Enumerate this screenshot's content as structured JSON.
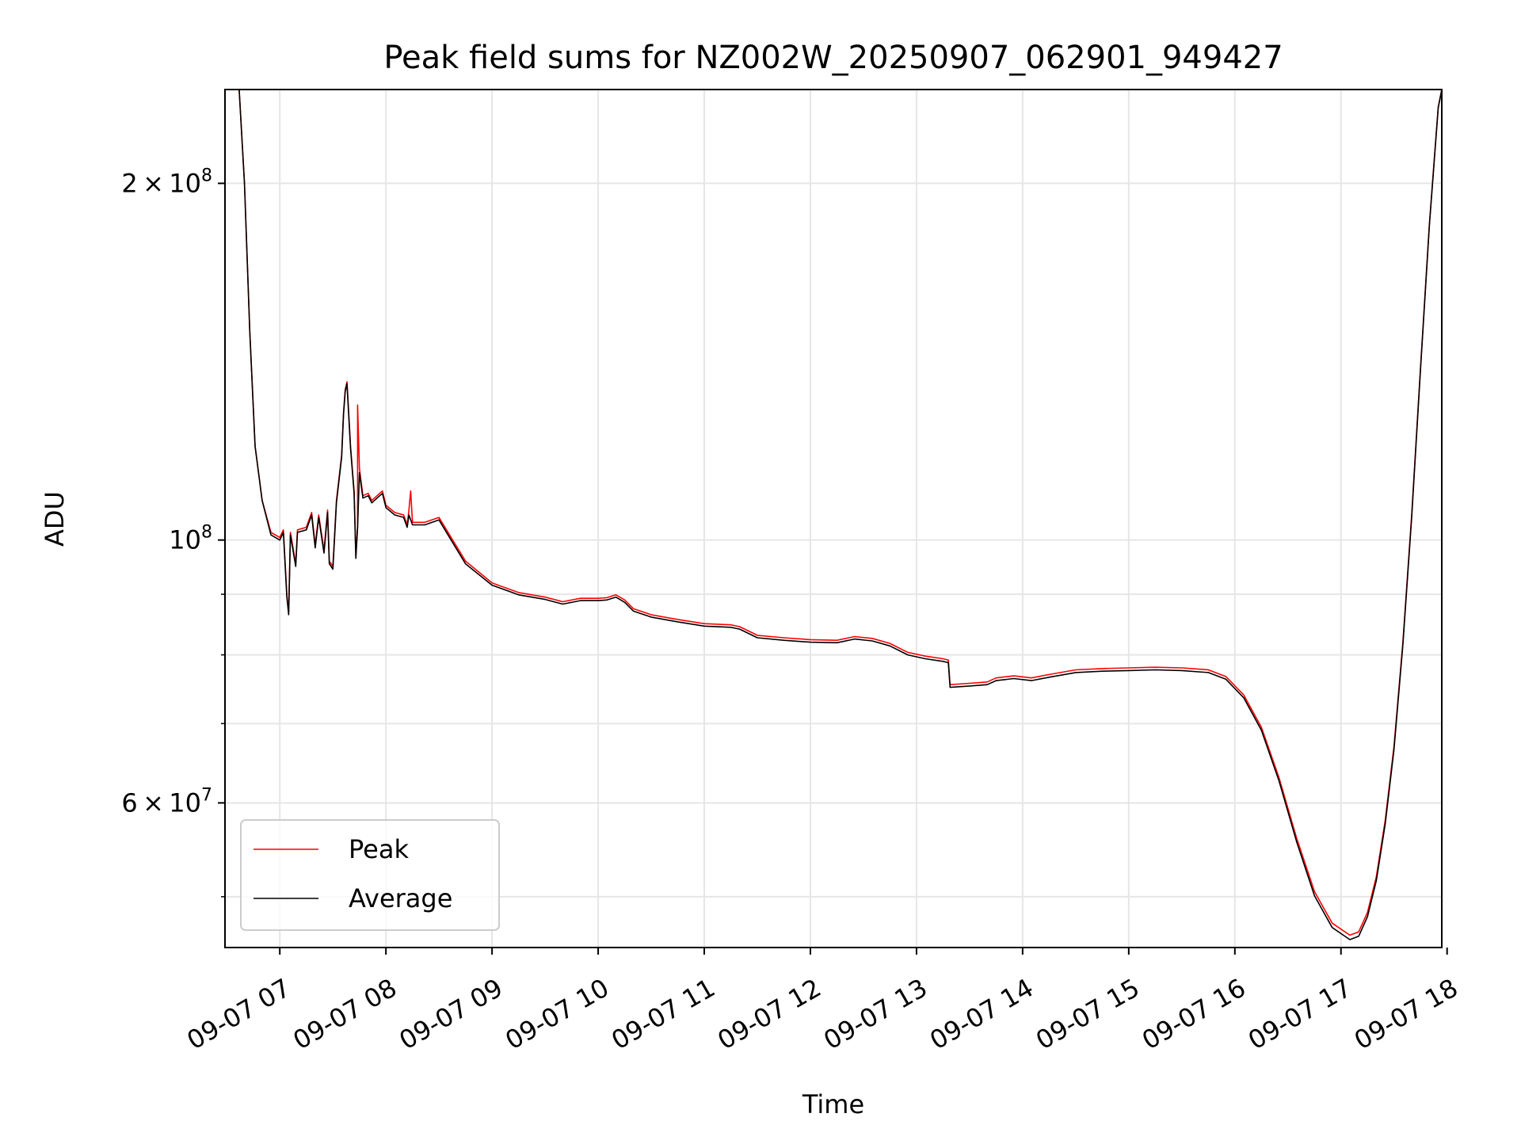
{
  "chart_data": {
    "type": "line",
    "title": "Peak field sums for NZ002W_20250907_062901_949427",
    "xlabel": "Time",
    "ylabel": "ADU",
    "y_scale": "log",
    "xlim": [
      "2025-09-07 06:29",
      "2025-09-07 17:57"
    ],
    "ylim": [
      45300000,
      240000000
    ],
    "grid": true,
    "legend_position": "lower-left",
    "x_ticks": [
      {
        "value": "2025-09-07 07:00",
        "label": "09-07 07"
      },
      {
        "value": "2025-09-07 08:00",
        "label": "09-07 08"
      },
      {
        "value": "2025-09-07 09:00",
        "label": "09-07 09"
      },
      {
        "value": "2025-09-07 10:00",
        "label": "09-07 10"
      },
      {
        "value": "2025-09-07 11:00",
        "label": "09-07 11"
      },
      {
        "value": "2025-09-07 12:00",
        "label": "09-07 12"
      },
      {
        "value": "2025-09-07 13:00",
        "label": "09-07 13"
      },
      {
        "value": "2025-09-07 14:00",
        "label": "09-07 14"
      },
      {
        "value": "2025-09-07 15:00",
        "label": "09-07 15"
      },
      {
        "value": "2025-09-07 16:00",
        "label": "09-07 16"
      },
      {
        "value": "2025-09-07 17:00",
        "label": "09-07 17"
      },
      {
        "value": "2025-09-07 18:00",
        "label": "09-07 18"
      }
    ],
    "y_major_ticks": [
      {
        "value": 200000000,
        "base": "2",
        "exp": "8"
      },
      {
        "value": 100000000,
        "base": "10",
        "exp": "8",
        "pow_only": true
      },
      {
        "value": 60000000,
        "base": "6",
        "exp": "7"
      }
    ],
    "y_minor_ticks": [
      50000000,
      70000000,
      80000000,
      90000000
    ],
    "series": [
      {
        "name": "Peak",
        "color": "#ff0000",
        "points": [
          [
            "2025-09-07 06:37",
            240000000
          ],
          [
            "2025-09-07 06:40",
            200000000
          ],
          [
            "2025-09-07 06:43",
            150000000
          ],
          [
            "2025-09-07 06:46",
            120000000
          ],
          [
            "2025-09-07 06:50",
            108000000
          ],
          [
            "2025-09-07 06:55",
            101500000
          ],
          [
            "2025-09-07 07:00",
            100500000
          ],
          [
            "2025-09-07 07:02",
            102000000
          ],
          [
            "2025-09-07 07:04",
            90000000
          ],
          [
            "2025-09-07 07:05",
            87000000
          ],
          [
            "2025-09-07 07:06",
            101500000
          ],
          [
            "2025-09-07 07:09",
            95500000
          ],
          [
            "2025-09-07 07:10",
            102000000
          ],
          [
            "2025-09-07 07:15",
            102500000
          ],
          [
            "2025-09-07 07:18",
            105500000
          ],
          [
            "2025-09-07 07:20",
            99000000
          ],
          [
            "2025-09-07 07:22",
            105000000
          ],
          [
            "2025-09-07 07:25",
            98000000
          ],
          [
            "2025-09-07 07:27",
            106000000
          ],
          [
            "2025-09-07 07:28",
            96000000
          ],
          [
            "2025-09-07 07:30",
            95000000
          ],
          [
            "2025-09-07 07:32",
            108000000
          ],
          [
            "2025-09-07 07:35",
            118000000
          ],
          [
            "2025-09-07 07:36",
            128000000
          ],
          [
            "2025-09-07 07:37",
            134000000
          ],
          [
            "2025-09-07 07:38",
            136000000
          ],
          [
            "2025-09-07 07:40",
            120000000
          ],
          [
            "2025-09-07 07:42",
            110000000
          ],
          [
            "2025-09-07 07:43",
            97000000
          ],
          [
            "2025-09-07 07:44",
            103000000
          ],
          [
            "2025-09-07 07:44",
            130000000
          ],
          [
            "2025-09-07 07:45",
            115000000
          ],
          [
            "2025-09-07 07:47",
            109000000
          ],
          [
            "2025-09-07 07:50",
            109500000
          ],
          [
            "2025-09-07 07:52",
            108000000
          ],
          [
            "2025-09-07 07:55",
            109000000
          ],
          [
            "2025-09-07 07:58",
            110000000
          ],
          [
            "2025-09-07 08:00",
            107000000
          ],
          [
            "2025-09-07 08:05",
            105500000
          ],
          [
            "2025-09-07 08:10",
            105000000
          ],
          [
            "2025-09-07 08:12",
            103000000
          ],
          [
            "2025-09-07 08:13",
            106000000
          ],
          [
            "2025-09-07 08:14",
            110000000
          ],
          [
            "2025-09-07 08:15",
            103500000
          ],
          [
            "2025-09-07 08:22",
            103500000
          ],
          [
            "2025-09-07 08:30",
            104500000
          ],
          [
            "2025-09-07 08:36",
            101000000
          ],
          [
            "2025-09-07 08:45",
            96000000
          ],
          [
            "2025-09-07 09:00",
            92000000
          ],
          [
            "2025-09-07 09:15",
            90300000
          ],
          [
            "2025-09-07 09:30",
            89500000
          ],
          [
            "2025-09-07 09:40",
            88700000
          ],
          [
            "2025-09-07 09:50",
            89300000
          ],
          [
            "2025-09-07 10:00",
            89300000
          ],
          [
            "2025-09-07 10:05",
            89400000
          ],
          [
            "2025-09-07 10:10",
            89900000
          ],
          [
            "2025-09-07 10:15",
            89000000
          ],
          [
            "2025-09-07 10:20",
            87500000
          ],
          [
            "2025-09-07 10:30",
            86500000
          ],
          [
            "2025-09-07 10:45",
            85700000
          ],
          [
            "2025-09-07 11:00",
            85000000
          ],
          [
            "2025-09-07 11:15",
            84800000
          ],
          [
            "2025-09-07 11:20",
            84500000
          ],
          [
            "2025-09-07 11:30",
            83100000
          ],
          [
            "2025-09-07 11:45",
            82700000
          ],
          [
            "2025-09-07 12:00",
            82400000
          ],
          [
            "2025-09-07 12:15",
            82300000
          ],
          [
            "2025-09-07 12:25",
            82900000
          ],
          [
            "2025-09-07 12:35",
            82600000
          ],
          [
            "2025-09-07 12:45",
            81800000
          ],
          [
            "2025-09-07 12:55",
            80400000
          ],
          [
            "2025-09-07 13:05",
            79800000
          ],
          [
            "2025-09-07 13:15",
            79400000
          ],
          [
            "2025-09-07 13:18",
            79200000
          ],
          [
            "2025-09-07 13:19",
            75500000
          ],
          [
            "2025-09-07 13:30",
            75700000
          ],
          [
            "2025-09-07 13:40",
            75900000
          ],
          [
            "2025-09-07 13:45",
            76500000
          ],
          [
            "2025-09-07 13:55",
            76800000
          ],
          [
            "2025-09-07 14:05",
            76500000
          ],
          [
            "2025-09-07 14:15",
            77000000
          ],
          [
            "2025-09-07 14:30",
            77700000
          ],
          [
            "2025-09-07 14:45",
            77900000
          ],
          [
            "2025-09-07 15:00",
            78000000
          ],
          [
            "2025-09-07 15:15",
            78100000
          ],
          [
            "2025-09-07 15:30",
            78000000
          ],
          [
            "2025-09-07 15:45",
            77700000
          ],
          [
            "2025-09-07 15:55",
            76700000
          ],
          [
            "2025-09-07 16:05",
            74000000
          ],
          [
            "2025-09-07 16:15",
            69500000
          ],
          [
            "2025-09-07 16:25",
            63000000
          ],
          [
            "2025-09-07 16:35",
            56000000
          ],
          [
            "2025-09-07 16:45",
            50500000
          ],
          [
            "2025-09-07 16:55",
            47500000
          ],
          [
            "2025-09-07 17:05",
            46400000
          ],
          [
            "2025-09-07 17:10",
            46700000
          ],
          [
            "2025-09-07 17:15",
            48500000
          ],
          [
            "2025-09-07 17:20",
            52000000
          ],
          [
            "2025-09-07 17:25",
            58000000
          ],
          [
            "2025-09-07 17:30",
            67000000
          ],
          [
            "2025-09-07 17:35",
            82000000
          ],
          [
            "2025-09-07 17:40",
            105000000
          ],
          [
            "2025-09-07 17:45",
            140000000
          ],
          [
            "2025-09-07 17:50",
            185000000
          ],
          [
            "2025-09-07 17:55",
            232000000
          ],
          [
            "2025-09-07 17:57",
            240000000
          ]
        ]
      },
      {
        "name": "Average",
        "color": "#000000",
        "points": [
          [
            "2025-09-07 06:37",
            240000000
          ],
          [
            "2025-09-07 06:40",
            200000000
          ],
          [
            "2025-09-07 06:43",
            150000000
          ],
          [
            "2025-09-07 06:46",
            120000000
          ],
          [
            "2025-09-07 06:50",
            108000000
          ],
          [
            "2025-09-07 06:55",
            101000000
          ],
          [
            "2025-09-07 07:00",
            100000000
          ],
          [
            "2025-09-07 07:02",
            101500000
          ],
          [
            "2025-09-07 07:04",
            89500000
          ],
          [
            "2025-09-07 07:05",
            86500000
          ],
          [
            "2025-09-07 07:06",
            101000000
          ],
          [
            "2025-09-07 07:09",
            95000000
          ],
          [
            "2025-09-07 07:10",
            101500000
          ],
          [
            "2025-09-07 07:15",
            102000000
          ],
          [
            "2025-09-07 07:18",
            105000000
          ],
          [
            "2025-09-07 07:20",
            98500000
          ],
          [
            "2025-09-07 07:22",
            104500000
          ],
          [
            "2025-09-07 07:25",
            97500000
          ],
          [
            "2025-09-07 07:27",
            105500000
          ],
          [
            "2025-09-07 07:28",
            95500000
          ],
          [
            "2025-09-07 07:30",
            94500000
          ],
          [
            "2025-09-07 07:32",
            107500000
          ],
          [
            "2025-09-07 07:35",
            117500000
          ],
          [
            "2025-09-07 07:36",
            127500000
          ],
          [
            "2025-09-07 07:37",
            133500000
          ],
          [
            "2025-09-07 07:38",
            135500000
          ],
          [
            "2025-09-07 07:40",
            119500000
          ],
          [
            "2025-09-07 07:42",
            109500000
          ],
          [
            "2025-09-07 07:43",
            96500000
          ],
          [
            "2025-09-07 07:44",
            102500000
          ],
          [
            "2025-09-07 07:45",
            114000000
          ],
          [
            "2025-09-07 07:47",
            108500000
          ],
          [
            "2025-09-07 07:50",
            109000000
          ],
          [
            "2025-09-07 07:52",
            107500000
          ],
          [
            "2025-09-07 07:55",
            108500000
          ],
          [
            "2025-09-07 07:58",
            109500000
          ],
          [
            "2025-09-07 08:00",
            106500000
          ],
          [
            "2025-09-07 08:05",
            105000000
          ],
          [
            "2025-09-07 08:10",
            104500000
          ],
          [
            "2025-09-07 08:12",
            102500000
          ],
          [
            "2025-09-07 08:13",
            105000000
          ],
          [
            "2025-09-07 08:15",
            103000000
          ],
          [
            "2025-09-07 08:22",
            103000000
          ],
          [
            "2025-09-07 08:30",
            104000000
          ],
          [
            "2025-09-07 08:36",
            100500000
          ],
          [
            "2025-09-07 08:45",
            95500000
          ],
          [
            "2025-09-07 09:00",
            91600000
          ],
          [
            "2025-09-07 09:15",
            89900000
          ],
          [
            "2025-09-07 09:30",
            89100000
          ],
          [
            "2025-09-07 09:40",
            88300000
          ],
          [
            "2025-09-07 09:50",
            88900000
          ],
          [
            "2025-09-07 10:00",
            88900000
          ],
          [
            "2025-09-07 10:05",
            89000000
          ],
          [
            "2025-09-07 10:10",
            89500000
          ],
          [
            "2025-09-07 10:15",
            88600000
          ],
          [
            "2025-09-07 10:20",
            87100000
          ],
          [
            "2025-09-07 10:30",
            86100000
          ],
          [
            "2025-09-07 10:45",
            85300000
          ],
          [
            "2025-09-07 11:00",
            84600000
          ],
          [
            "2025-09-07 11:15",
            84400000
          ],
          [
            "2025-09-07 11:20",
            84100000
          ],
          [
            "2025-09-07 11:30",
            82700000
          ],
          [
            "2025-09-07 11:45",
            82300000
          ],
          [
            "2025-09-07 12:00",
            82000000
          ],
          [
            "2025-09-07 12:15",
            81900000
          ],
          [
            "2025-09-07 12:25",
            82500000
          ],
          [
            "2025-09-07 12:35",
            82200000
          ],
          [
            "2025-09-07 12:45",
            81400000
          ],
          [
            "2025-09-07 12:55",
            80000000
          ],
          [
            "2025-09-07 13:05",
            79400000
          ],
          [
            "2025-09-07 13:15",
            79000000
          ],
          [
            "2025-09-07 13:18",
            78800000
          ],
          [
            "2025-09-07 13:19",
            75100000
          ],
          [
            "2025-09-07 13:30",
            75300000
          ],
          [
            "2025-09-07 13:40",
            75500000
          ],
          [
            "2025-09-07 13:45",
            76100000
          ],
          [
            "2025-09-07 13:55",
            76400000
          ],
          [
            "2025-09-07 14:05",
            76100000
          ],
          [
            "2025-09-07 14:15",
            76600000
          ],
          [
            "2025-09-07 14:30",
            77300000
          ],
          [
            "2025-09-07 14:45",
            77500000
          ],
          [
            "2025-09-07 15:00",
            77600000
          ],
          [
            "2025-09-07 15:15",
            77700000
          ],
          [
            "2025-09-07 15:30",
            77600000
          ],
          [
            "2025-09-07 15:45",
            77300000
          ],
          [
            "2025-09-07 15:55",
            76300000
          ],
          [
            "2025-09-07 16:05",
            73600000
          ],
          [
            "2025-09-07 16:15",
            69100000
          ],
          [
            "2025-09-07 16:25",
            62600000
          ],
          [
            "2025-09-07 16:35",
            55600000
          ],
          [
            "2025-09-07 16:45",
            50100000
          ],
          [
            "2025-09-07 16:55",
            47100000
          ],
          [
            "2025-09-07 17:05",
            46000000
          ],
          [
            "2025-09-07 17:10",
            46300000
          ],
          [
            "2025-09-07 17:15",
            48100000
          ],
          [
            "2025-09-07 17:20",
            51600000
          ],
          [
            "2025-09-07 17:25",
            57600000
          ],
          [
            "2025-09-07 17:30",
            66600000
          ],
          [
            "2025-09-07 17:35",
            81600000
          ],
          [
            "2025-09-07 17:40",
            104500000
          ],
          [
            "2025-09-07 17:45",
            139500000
          ],
          [
            "2025-09-07 17:50",
            184500000
          ],
          [
            "2025-09-07 17:55",
            231500000
          ],
          [
            "2025-09-07 17:57",
            240000000
          ]
        ]
      }
    ]
  }
}
